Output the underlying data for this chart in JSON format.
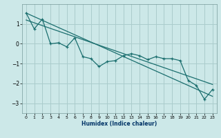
{
  "xlabel": "Humidex (Indice chaleur)",
  "ylabel": "",
  "background_color": "#cce8e8",
  "grid_color": "#aacccc",
  "line_color": "#1a6e6e",
  "xlim": [
    -0.5,
    23.5
  ],
  "ylim": [
    -3.5,
    2.0
  ],
  "yticks": [
    -3,
    -2,
    -1,
    0,
    1
  ],
  "xticks": [
    0,
    1,
    2,
    3,
    4,
    5,
    6,
    7,
    8,
    9,
    10,
    11,
    12,
    13,
    14,
    15,
    16,
    17,
    18,
    19,
    20,
    21,
    22,
    23
  ],
  "data_x": [
    0,
    1,
    2,
    3,
    4,
    5,
    6,
    7,
    8,
    9,
    10,
    11,
    12,
    13,
    14,
    15,
    16,
    17,
    18,
    19,
    20,
    21,
    22,
    23
  ],
  "data_y": [
    1.55,
    0.75,
    1.25,
    0.0,
    0.05,
    -0.15,
    0.3,
    -0.65,
    -0.75,
    -1.15,
    -0.9,
    -0.85,
    -0.6,
    -0.5,
    -0.6,
    -0.8,
    -0.65,
    -0.75,
    -0.75,
    -0.85,
    -1.85,
    -2.1,
    -2.8,
    -2.3
  ],
  "trend_x": [
    0,
    23
  ],
  "trend_y": [
    1.55,
    -2.65
  ],
  "trend2_x": [
    0,
    23
  ],
  "trend2_y": [
    1.2,
    -2.05
  ]
}
